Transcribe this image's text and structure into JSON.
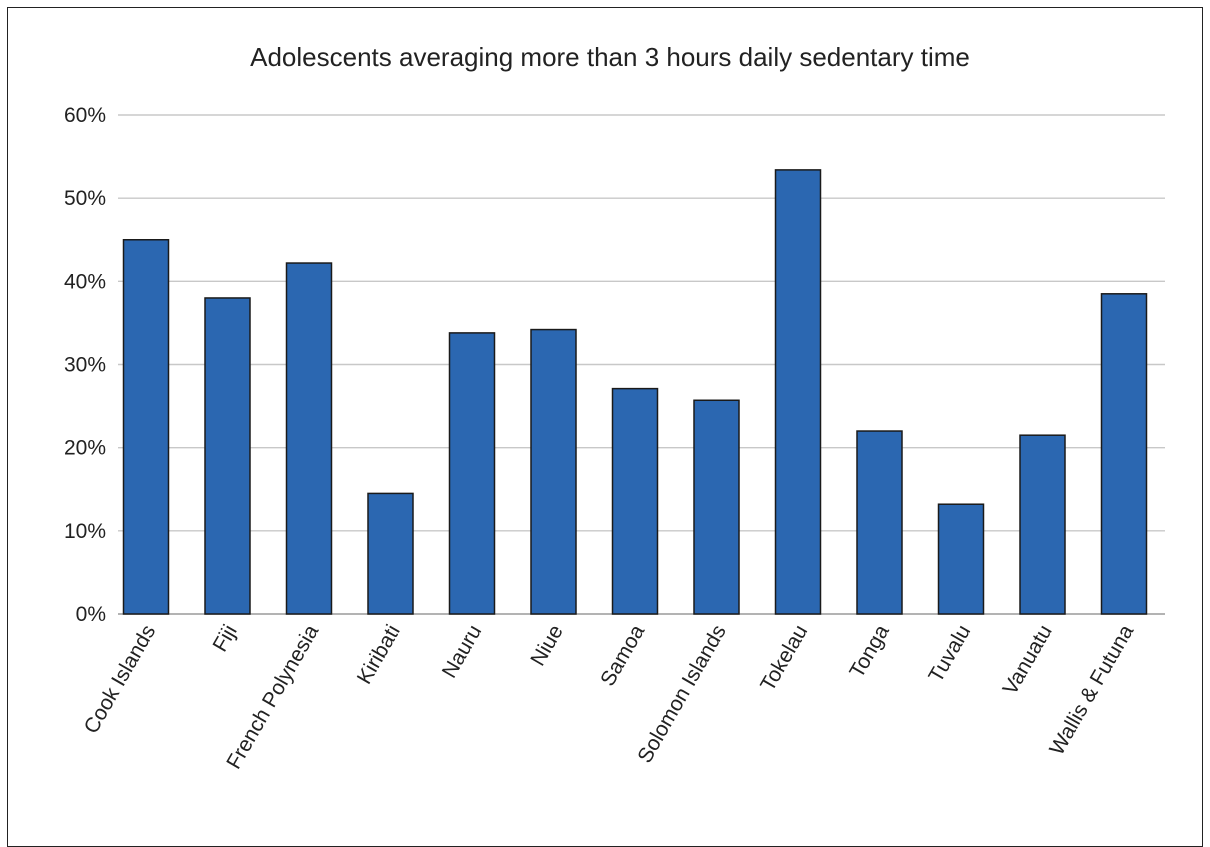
{
  "chart_data": {
    "type": "bar",
    "title": "Adolescents averaging more than 3 hours daily sedentary time",
    "xlabel": "",
    "ylabel": "",
    "categories": [
      "Cook Islands",
      "Fiji",
      "French Polynesia",
      "Kiribati",
      "Nauru",
      "Niue",
      "Samoa",
      "Solomon Islands",
      "Tokelau",
      "Tonga",
      "Tuvalu",
      "Vanuatu",
      "Wallis & Futuna"
    ],
    "values": [
      45.0,
      38.0,
      42.2,
      14.5,
      33.8,
      34.2,
      27.1,
      25.7,
      53.4,
      22.0,
      13.2,
      21.5,
      38.5
    ],
    "ylim": [
      0,
      60
    ],
    "yticks": [
      0,
      10,
      20,
      30,
      40,
      50,
      60
    ],
    "ytick_labels": [
      "0%",
      "10%",
      "20%",
      "30%",
      "40%",
      "50%",
      "60%"
    ],
    "grid": true,
    "legend": "none",
    "colors": {
      "bar": "#2b67b1",
      "bar_edge": "#1a1a1a",
      "grid": "#c8c8c8",
      "text": "#222222"
    }
  }
}
